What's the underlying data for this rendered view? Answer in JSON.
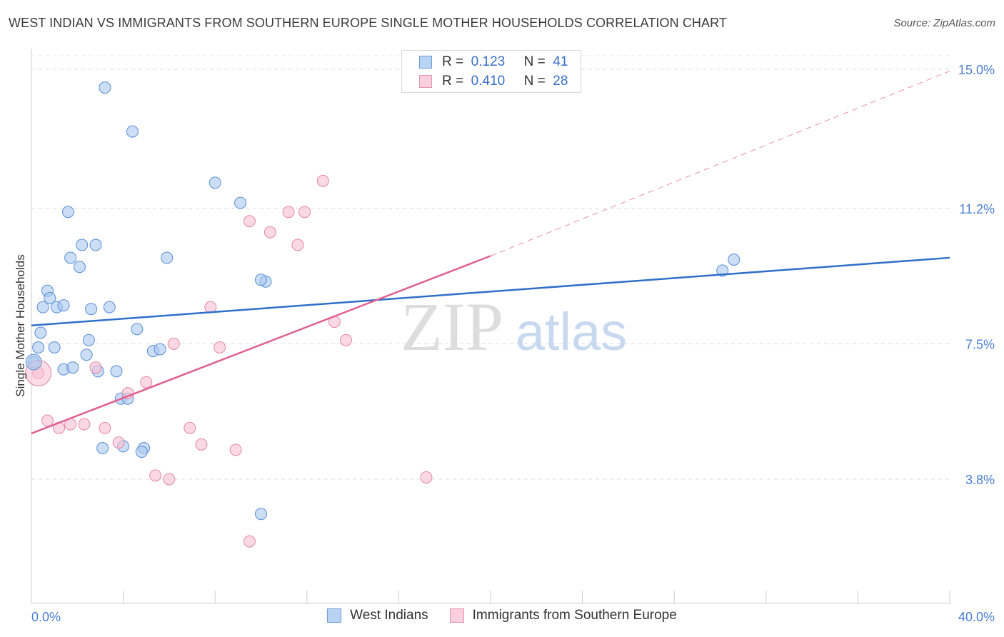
{
  "chart_data": {
    "type": "scatter",
    "title": "WEST INDIAN VS IMMIGRANTS FROM SOUTHERN EUROPE SINGLE MOTHER HOUSEHOLDS CORRELATION CHART",
    "source": "Source: ZipAtlas.com",
    "xlabel": "",
    "ylabel": "Single Mother Households",
    "xlim": [
      0,
      40
    ],
    "ylim": [
      0,
      15.5
    ],
    "x_ticks": [
      0,
      4,
      8,
      12,
      16,
      20,
      24,
      28,
      32,
      36,
      40
    ],
    "x_tick_labels": [
      {
        "value": 0,
        "label": "0.0%"
      },
      {
        "value": 40,
        "label": "40.0%"
      }
    ],
    "y_ticks": [
      {
        "value": 3.8,
        "label": "3.8%"
      },
      {
        "value": 7.5,
        "label": "7.5%"
      },
      {
        "value": 11.2,
        "label": "11.2%"
      },
      {
        "value": 15.0,
        "label": "15.0%"
      }
    ],
    "grid": true,
    "watermark": {
      "zip": "ZIP",
      "atlas": "atlas"
    },
    "legend_stats": [
      {
        "r_label": "R =",
        "r_value": "0.123",
        "n_label": "N =",
        "n_value": "41"
      },
      {
        "r_label": "R =",
        "r_value": "0.410",
        "n_label": "N =",
        "n_value": "28"
      }
    ],
    "series": [
      {
        "name": "West Indians",
        "color": "#a8c8f0",
        "stroke": "#5a8ed6",
        "trend_color": "#2f6fc9",
        "trend": {
          "x0": 0,
          "y0": 8.0,
          "x1": 40,
          "y1": 9.85
        },
        "points": [
          [
            3.2,
            14.5
          ],
          [
            4.4,
            13.3
          ],
          [
            8.0,
            11.9
          ],
          [
            1.6,
            11.1
          ],
          [
            9.1,
            11.35
          ],
          [
            2.2,
            10.2
          ],
          [
            2.8,
            10.2
          ],
          [
            1.7,
            9.85
          ],
          [
            5.9,
            9.85
          ],
          [
            2.1,
            9.6
          ],
          [
            10.2,
            9.2
          ],
          [
            10.0,
            9.25
          ],
          [
            0.7,
            8.95
          ],
          [
            0.8,
            8.75
          ],
          [
            0.5,
            8.5
          ],
          [
            1.1,
            8.5
          ],
          [
            1.4,
            8.55
          ],
          [
            2.6,
            8.45
          ],
          [
            3.4,
            8.5
          ],
          [
            0.4,
            7.8
          ],
          [
            4.6,
            7.9
          ],
          [
            2.5,
            7.6
          ],
          [
            0.3,
            7.4
          ],
          [
            1.0,
            7.4
          ],
          [
            5.3,
            7.3
          ],
          [
            5.6,
            7.35
          ],
          [
            2.4,
            7.2
          ],
          [
            0.1,
            7.0
          ],
          [
            1.4,
            6.8
          ],
          [
            1.8,
            6.85
          ],
          [
            2.9,
            6.75
          ],
          [
            3.7,
            6.75
          ],
          [
            3.9,
            6.0
          ],
          [
            4.2,
            6.0
          ],
          [
            3.1,
            4.65
          ],
          [
            4.0,
            4.7
          ],
          [
            4.9,
            4.65
          ],
          [
            4.8,
            4.55
          ],
          [
            10.0,
            2.85
          ],
          [
            30.1,
            9.5
          ],
          [
            30.6,
            9.8
          ]
        ]
      },
      {
        "name": "Immigrants from Southern Europe",
        "color": "#f8c0d2",
        "stroke": "#e487a6",
        "trend_color": "#e0608f",
        "trend": {
          "x0": 0,
          "y0": 5.05,
          "x1": 20,
          "y1": 9.9
        },
        "trend_dashed": {
          "x0": 20,
          "y0": 9.9,
          "x1": 40,
          "y1": 14.95
        },
        "points": [
          [
            12.7,
            11.95
          ],
          [
            11.2,
            11.1
          ],
          [
            11.9,
            11.1
          ],
          [
            9.5,
            10.85
          ],
          [
            10.4,
            10.55
          ],
          [
            11.6,
            10.2
          ],
          [
            7.8,
            8.5
          ],
          [
            13.2,
            8.1
          ],
          [
            13.7,
            7.6
          ],
          [
            6.2,
            7.5
          ],
          [
            8.2,
            7.4
          ],
          [
            2.8,
            6.85
          ],
          [
            5.0,
            6.45
          ],
          [
            4.2,
            6.15
          ],
          [
            0.3,
            6.7
          ],
          [
            0.7,
            5.4
          ],
          [
            1.2,
            5.2
          ],
          [
            1.7,
            5.3
          ],
          [
            2.3,
            5.3
          ],
          [
            3.2,
            5.2
          ],
          [
            6.9,
            5.2
          ],
          [
            3.8,
            4.8
          ],
          [
            7.4,
            4.75
          ],
          [
            8.9,
            4.6
          ],
          [
            5.4,
            3.9
          ],
          [
            6.0,
            3.8
          ],
          [
            17.2,
            3.85
          ],
          [
            9.5,
            2.1
          ]
        ]
      }
    ]
  }
}
